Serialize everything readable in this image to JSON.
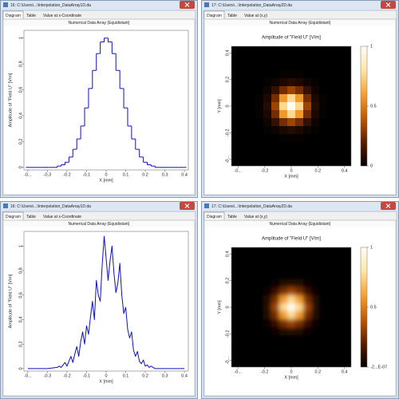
{
  "windows": [
    {
      "title": "16: C:\\Users\\...\\Interpolation_DataArray1D.da",
      "tabs": [
        "Diagram",
        "Table",
        "Value at x-Coordinate"
      ],
      "header": "Numerical Data Array (Equidistant)"
    },
    {
      "title": "17: C:\\Users\\...\\Interpolation_DataArray2D.da",
      "tabs": [
        "Diagram",
        "Table",
        "Value at (x,y)"
      ],
      "header": "Numerical Data Array (Equidistant)"
    },
    {
      "title": "16: C:\\Users\\...\\Interpolation_DataArray1D.da",
      "tabs": [
        "Diagram",
        "Table",
        "Value at x-Coordinate"
      ],
      "header": "Numerical Data Array (Equidistant)"
    },
    {
      "title": "17: C:\\Users\\...\\Interpolation_DataArray2D.da",
      "tabs": [
        "Diagram",
        "Table",
        "Value at (x,y)"
      ],
      "header": "Numerical Data Array (Equidistant)"
    }
  ],
  "chart_data": [
    {
      "type": "line",
      "step": true,
      "xlabel": "X [mm]",
      "ylabel": "Amplitude of \"Field U\" [V/m]",
      "x": [
        -0.4,
        -0.38,
        -0.36,
        -0.34,
        -0.32,
        -0.3,
        -0.28,
        -0.26,
        -0.24,
        -0.22,
        -0.2,
        -0.18,
        -0.16,
        -0.14,
        -0.12,
        -0.1,
        -0.08,
        -0.06,
        -0.04,
        -0.02,
        0,
        0.02,
        0.04,
        0.06,
        0.08,
        0.1,
        0.12,
        0.14,
        0.16,
        0.18,
        0.2,
        0.22,
        0.24,
        0.26,
        0.28,
        0.3,
        0.32,
        0.34,
        0.36,
        0.38,
        0.4
      ],
      "series": [
        {
          "color": "#1010c0",
          "values": [
            0,
            0,
            0,
            0,
            0,
            0,
            0,
            0,
            0.01,
            0.02,
            0.04,
            0.08,
            0.14,
            0.22,
            0.32,
            0.46,
            0.61,
            0.75,
            0.88,
            0.97,
            1,
            0.97,
            0.88,
            0.75,
            0.61,
            0.46,
            0.32,
            0.22,
            0.14,
            0.08,
            0.04,
            0.02,
            0.01,
            0,
            0,
            0,
            0,
            0,
            0,
            0,
            0
          ]
        }
      ],
      "xlim": [
        -0.42,
        0.42
      ],
      "ylim": [
        -0.02,
        1.06
      ],
      "xticks": [
        {
          "value": -0.4,
          "label": "-0..."
        },
        -0.3,
        -0.2,
        -0.1,
        0,
        0.1,
        0.2,
        0.3,
        0.4
      ],
      "yticks": [
        0,
        0.2,
        0.4,
        0.6,
        0.8,
        1
      ]
    },
    {
      "type": "heatmap",
      "smooth": false,
      "title": "Amplitude of \"Field U\"  [V/m]",
      "xlabel": "X [mm]",
      "ylabel": "Y [mm]",
      "xlim": [
        -0.45,
        0.45
      ],
      "ylim": [
        -0.45,
        0.45
      ],
      "xticks": [
        {
          "value": -0.4,
          "label": "-0..."
        },
        -0.2,
        0,
        0.2,
        0.4
      ],
      "yticks": [
        {
          "value": -0.4,
          "label": "-0..."
        },
        -0.2,
        0,
        0.2,
        0.4
      ],
      "colormap": [
        "#000000",
        "#5a1e00",
        "#c05a00",
        "#f5a030",
        "#ffe6a8",
        "#fffdf4"
      ],
      "clim": [
        0,
        1
      ],
      "cticks": [
        0,
        0.5,
        1
      ],
      "z": [
        [
          0,
          0,
          0,
          0,
          0,
          0,
          0,
          0,
          0,
          0,
          0,
          0,
          0,
          0,
          0
        ],
        [
          0,
          0,
          0,
          0,
          0,
          0,
          0,
          0,
          0,
          0,
          0,
          0,
          0,
          0,
          0
        ],
        [
          0,
          0,
          0,
          0,
          0,
          0,
          0,
          0,
          0,
          0,
          0,
          0,
          0,
          0,
          0
        ],
        [
          0,
          0,
          0,
          0,
          0,
          0,
          0.01,
          0.01,
          0.01,
          0,
          0,
          0,
          0,
          0,
          0
        ],
        [
          0,
          0,
          0,
          0,
          0.01,
          0.03,
          0.06,
          0.08,
          0.06,
          0.03,
          0.01,
          0,
          0,
          0,
          0
        ],
        [
          0,
          0,
          0,
          0,
          0.03,
          0.11,
          0.25,
          0.33,
          0.25,
          0.11,
          0.03,
          0,
          0,
          0,
          0
        ],
        [
          0,
          0,
          0,
          0.01,
          0.06,
          0.25,
          0.58,
          0.76,
          0.58,
          0.25,
          0.06,
          0.01,
          0,
          0,
          0
        ],
        [
          0,
          0,
          0,
          0.01,
          0.08,
          0.33,
          0.76,
          1,
          0.76,
          0.33,
          0.08,
          0.01,
          0,
          0,
          0
        ],
        [
          0,
          0,
          0,
          0.01,
          0.06,
          0.25,
          0.58,
          0.76,
          0.58,
          0.25,
          0.06,
          0.01,
          0,
          0,
          0
        ],
        [
          0,
          0,
          0,
          0,
          0.03,
          0.11,
          0.25,
          0.33,
          0.25,
          0.11,
          0.03,
          0,
          0,
          0,
          0
        ],
        [
          0,
          0,
          0,
          0,
          0.01,
          0.03,
          0.06,
          0.08,
          0.06,
          0.03,
          0.01,
          0,
          0,
          0,
          0
        ],
        [
          0,
          0,
          0,
          0,
          0,
          0,
          0.01,
          0.01,
          0.01,
          0,
          0,
          0,
          0,
          0,
          0
        ],
        [
          0,
          0,
          0,
          0,
          0,
          0,
          0,
          0,
          0,
          0,
          0,
          0,
          0,
          0,
          0
        ],
        [
          0,
          0,
          0,
          0,
          0,
          0,
          0,
          0,
          0,
          0,
          0,
          0,
          0,
          0,
          0
        ],
        [
          0,
          0,
          0,
          0,
          0,
          0,
          0,
          0,
          0,
          0,
          0,
          0,
          0,
          0,
          0
        ]
      ]
    },
    {
      "type": "line",
      "step": false,
      "xlabel": "X [mm]",
      "ylabel": "Amplitude of \"Field U\" [V/m]",
      "x": [
        -0.4,
        -0.3,
        -0.25,
        -0.24,
        -0.23,
        -0.22,
        -0.21,
        -0.2,
        -0.19,
        -0.18,
        -0.17,
        -0.16,
        -0.15,
        -0.14,
        -0.13,
        -0.12,
        -0.11,
        -0.1,
        -0.09,
        -0.08,
        -0.07,
        -0.06,
        -0.05,
        -0.04,
        -0.03,
        -0.02,
        -0.01,
        0,
        0.01,
        0.02,
        0.03,
        0.04,
        0.05,
        0.06,
        0.07,
        0.08,
        0.09,
        0.1,
        0.11,
        0.12,
        0.13,
        0.14,
        0.15,
        0.16,
        0.17,
        0.18,
        0.19,
        0.2,
        0.21,
        0.22,
        0.23,
        0.24,
        0.25,
        0.3,
        0.4
      ],
      "series": [
        {
          "color": "#1010c0",
          "values": [
            0,
            0,
            0.01,
            0.02,
            0.01,
            0.03,
            0.05,
            0.02,
            0.06,
            0.1,
            0.05,
            0.12,
            0.18,
            0.1,
            0.22,
            0.3,
            0.2,
            0.35,
            0.28,
            0.42,
            0.55,
            0.4,
            0.72,
            0.6,
            0.55,
            0.85,
            1.08,
            0.9,
            0.72,
            0.88,
            1,
            0.78,
            0.62,
            0.7,
            0.86,
            0.6,
            0.45,
            0.5,
            0.32,
            0.25,
            0.3,
            0.15,
            0.1,
            0.14,
            0.06,
            0.04,
            0.07,
            0.02,
            0.03,
            0.01,
            0.02,
            0.01,
            0,
            0,
            0
          ]
        }
      ],
      "xlim": [
        -0.42,
        0.42
      ],
      "ylim": [
        -0.02,
        1.12
      ],
      "xticks": [
        {
          "value": -0.4,
          "label": "-0..."
        },
        -0.3,
        -0.2,
        -0.1,
        0,
        0.1,
        0.2,
        0.3,
        0.4
      ],
      "yticks": [
        0,
        0.2,
        0.4,
        0.6,
        0.8,
        1
      ]
    },
    {
      "type": "heatmap",
      "smooth": true,
      "title": "Amplitude of \"Field U\"  [V/m]",
      "xlabel": "X [mm]",
      "ylabel": "Y [mm]",
      "xlim": [
        -0.45,
        0.45
      ],
      "ylim": [
        -0.45,
        0.45
      ],
      "xticks": [
        {
          "value": -0.4,
          "label": "-0..."
        },
        -0.2,
        0,
        0.2,
        0.4
      ],
      "yticks": [
        {
          "value": -0.4,
          "label": "-0..."
        },
        -0.2,
        0,
        0.2,
        0.4
      ],
      "colormap": [
        "#000000",
        "#5a1e00",
        "#c05a00",
        "#f5a030",
        "#ffe6a8",
        "#fffdf4"
      ],
      "clim": [
        -2e-07,
        1
      ],
      "cticks": [
        {
          "value": -2e-07,
          "label": "-2...E-07"
        },
        0.5,
        1
      ],
      "z": [
        [
          0,
          0,
          0,
          0,
          0,
          0,
          0,
          0,
          0,
          0,
          0,
          0,
          0,
          0,
          0
        ],
        [
          0,
          0,
          0,
          0,
          0,
          0,
          0,
          0,
          0,
          0,
          0,
          0,
          0,
          0,
          0
        ],
        [
          0,
          0,
          0,
          0,
          0,
          0,
          0,
          0,
          0,
          0,
          0,
          0,
          0,
          0,
          0
        ],
        [
          0,
          0,
          0,
          0,
          0,
          0,
          0.01,
          0.01,
          0.01,
          0,
          0,
          0,
          0,
          0,
          0
        ],
        [
          0,
          0,
          0,
          0,
          0.01,
          0.03,
          0.06,
          0.08,
          0.06,
          0.03,
          0.01,
          0,
          0,
          0,
          0
        ],
        [
          0,
          0,
          0,
          0,
          0.03,
          0.11,
          0.25,
          0.33,
          0.25,
          0.11,
          0.03,
          0,
          0,
          0,
          0
        ],
        [
          0,
          0,
          0,
          0.01,
          0.06,
          0.25,
          0.58,
          0.76,
          0.58,
          0.25,
          0.06,
          0.01,
          0,
          0,
          0
        ],
        [
          0,
          0,
          0,
          0.01,
          0.08,
          0.33,
          0.76,
          1,
          0.76,
          0.33,
          0.08,
          0.01,
          0,
          0,
          0
        ],
        [
          0,
          0,
          0,
          0.01,
          0.06,
          0.25,
          0.58,
          0.76,
          0.58,
          0.25,
          0.06,
          0.01,
          0,
          0,
          0
        ],
        [
          0,
          0,
          0,
          0,
          0.03,
          0.11,
          0.25,
          0.33,
          0.25,
          0.11,
          0.03,
          0,
          0,
          0,
          0
        ],
        [
          0,
          0,
          0,
          0,
          0.01,
          0.03,
          0.06,
          0.08,
          0.06,
          0.03,
          0.01,
          0,
          0,
          0,
          0
        ],
        [
          0,
          0,
          0,
          0,
          0,
          0,
          0.01,
          0.01,
          0.01,
          0,
          0,
          0,
          0,
          0,
          0
        ],
        [
          0,
          0,
          0,
          0,
          0,
          0,
          0,
          0,
          0,
          0,
          0,
          0,
          0,
          0,
          0
        ],
        [
          0,
          0,
          0,
          0,
          0,
          0,
          0,
          0,
          0,
          0,
          0,
          0,
          0,
          0,
          0
        ],
        [
          0,
          0,
          0,
          0,
          0,
          0,
          0,
          0,
          0,
          0,
          0,
          0,
          0,
          0,
          0
        ]
      ]
    }
  ]
}
